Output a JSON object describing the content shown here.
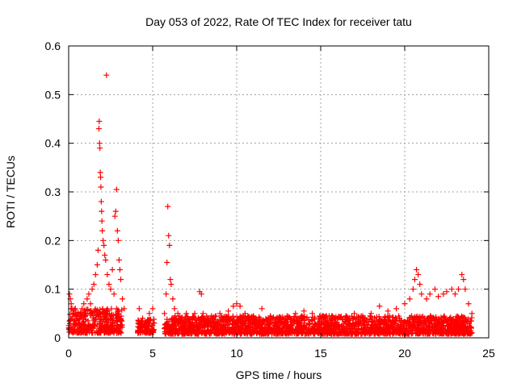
{
  "chart_data": {
    "type": "scatter",
    "title": "Day 053 of 2022, Rate Of TEC Index for receiver tatu",
    "xlabel": "GPS time / hours",
    "ylabel": "ROTI / TECUs",
    "xlim": [
      0,
      25
    ],
    "ylim": [
      0,
      0.6
    ],
    "x_ticks": [
      "0",
      "5",
      "10",
      "15",
      "20",
      "25"
    ],
    "y_ticks": [
      "0",
      "0.1",
      "0.2",
      "0.3",
      "0.4",
      "0.5",
      "0.6"
    ],
    "grid": true,
    "marker": "+",
    "series": [
      {
        "color": "#ff0000",
        "points": [
          [
            0.05,
            0.09
          ],
          [
            0.1,
            0.08
          ],
          [
            0.15,
            0.07
          ],
          [
            0.2,
            0.06
          ],
          [
            0.3,
            0.05
          ],
          [
            0.4,
            0.06
          ],
          [
            0.5,
            0.04
          ],
          [
            0.6,
            0.03
          ],
          [
            0.7,
            0.05
          ],
          [
            0.8,
            0.06
          ],
          [
            0.9,
            0.07
          ],
          [
            1.0,
            0.05
          ],
          [
            1.1,
            0.08
          ],
          [
            1.2,
            0.09
          ],
          [
            1.3,
            0.07
          ],
          [
            1.4,
            0.1
          ],
          [
            1.5,
            0.11
          ],
          [
            1.6,
            0.13
          ],
          [
            1.7,
            0.15
          ],
          [
            1.75,
            0.18
          ],
          [
            1.8,
            0.43
          ],
          [
            1.82,
            0.445
          ],
          [
            1.84,
            0.4
          ],
          [
            1.86,
            0.39
          ],
          [
            1.88,
            0.34
          ],
          [
            1.9,
            0.33
          ],
          [
            1.92,
            0.31
          ],
          [
            1.94,
            0.28
          ],
          [
            1.96,
            0.26
          ],
          [
            1.98,
            0.24
          ],
          [
            2.0,
            0.22
          ],
          [
            2.05,
            0.2
          ],
          [
            2.1,
            0.19
          ],
          [
            2.15,
            0.17
          ],
          [
            2.2,
            0.16
          ],
          [
            2.25,
            0.54
          ],
          [
            2.3,
            0.13
          ],
          [
            2.4,
            0.11
          ],
          [
            2.5,
            0.1
          ],
          [
            2.6,
            0.14
          ],
          [
            2.7,
            0.09
          ],
          [
            2.75,
            0.25
          ],
          [
            2.8,
            0.26
          ],
          [
            2.85,
            0.305
          ],
          [
            2.9,
            0.22
          ],
          [
            2.95,
            0.2
          ],
          [
            3.0,
            0.16
          ],
          [
            3.05,
            0.14
          ],
          [
            3.1,
            0.12
          ],
          [
            3.2,
            0.08
          ],
          [
            3.3,
            0.06
          ],
          [
            4.2,
            0.06
          ],
          [
            4.4,
            0.04
          ],
          [
            4.6,
            0.03
          ],
          [
            4.8,
            0.05
          ],
          [
            5.0,
            0.06
          ],
          [
            5.7,
            0.05
          ],
          [
            5.8,
            0.09
          ],
          [
            5.85,
            0.155
          ],
          [
            5.9,
            0.27
          ],
          [
            5.95,
            0.21
          ],
          [
            6.0,
            0.19
          ],
          [
            6.05,
            0.12
          ],
          [
            6.1,
            0.11
          ],
          [
            6.2,
            0.08
          ],
          [
            6.3,
            0.06
          ],
          [
            6.5,
            0.05
          ],
          [
            7.0,
            0.05
          ],
          [
            7.5,
            0.05
          ],
          [
            7.8,
            0.095
          ],
          [
            7.9,
            0.09
          ],
          [
            8.0,
            0.05
          ],
          [
            8.5,
            0.045
          ],
          [
            9.0,
            0.05
          ],
          [
            9.5,
            0.055
          ],
          [
            9.8,
            0.065
          ],
          [
            10.0,
            0.07
          ],
          [
            10.2,
            0.065
          ],
          [
            10.5,
            0.05
          ],
          [
            11.0,
            0.045
          ],
          [
            11.5,
            0.06
          ],
          [
            12.0,
            0.045
          ],
          [
            12.5,
            0.04
          ],
          [
            13.0,
            0.045
          ],
          [
            13.5,
            0.05
          ],
          [
            14.0,
            0.055
          ],
          [
            14.5,
            0.05
          ],
          [
            15.0,
            0.04
          ],
          [
            15.5,
            0.045
          ],
          [
            16.0,
            0.04
          ],
          [
            16.5,
            0.045
          ],
          [
            17.0,
            0.05
          ],
          [
            17.5,
            0.045
          ],
          [
            18.0,
            0.05
          ],
          [
            18.5,
            0.065
          ],
          [
            19.0,
            0.055
          ],
          [
            19.5,
            0.06
          ],
          [
            20.0,
            0.07
          ],
          [
            20.3,
            0.08
          ],
          [
            20.5,
            0.1
          ],
          [
            20.6,
            0.12
          ],
          [
            20.7,
            0.14
          ],
          [
            20.8,
            0.13
          ],
          [
            20.9,
            0.11
          ],
          [
            21.0,
            0.09
          ],
          [
            21.3,
            0.08
          ],
          [
            21.5,
            0.09
          ],
          [
            21.8,
            0.1
          ],
          [
            22.0,
            0.085
          ],
          [
            22.3,
            0.09
          ],
          [
            22.5,
            0.095
          ],
          [
            22.8,
            0.1
          ],
          [
            23.0,
            0.09
          ],
          [
            23.2,
            0.1
          ],
          [
            23.4,
            0.13
          ],
          [
            23.5,
            0.12
          ],
          [
            23.6,
            0.1
          ],
          [
            23.8,
            0.07
          ],
          [
            24.0,
            0.05
          ]
        ]
      }
    ],
    "dense_band": {
      "note_segments": [
        [
          0.0,
          3.2,
          0.01,
          0.06
        ],
        [
          4.1,
          5.1,
          0.01,
          0.04
        ],
        [
          5.7,
          24.0,
          0.008,
          0.045
        ]
      ]
    }
  }
}
